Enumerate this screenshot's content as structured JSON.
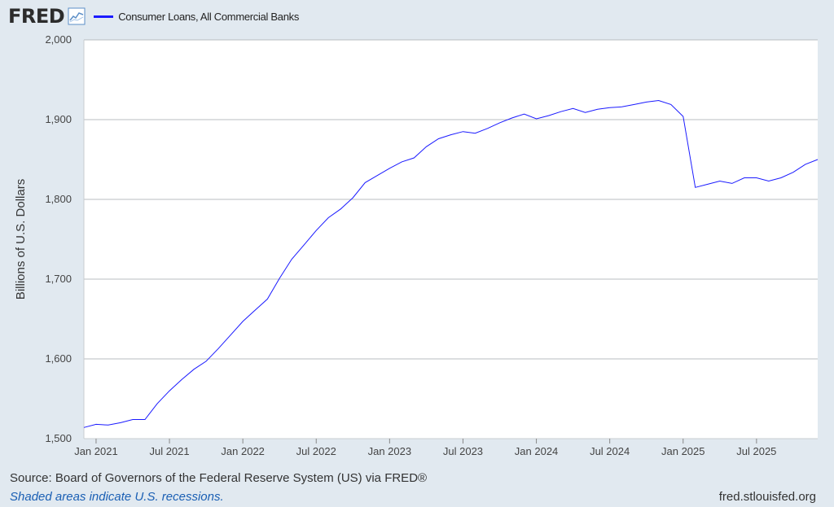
{
  "header": {
    "logo": "FRED",
    "legend_label": "Consumer Loans, All Commercial Banks"
  },
  "colors": {
    "series": "#1a1aff",
    "background": "#e1e9f0",
    "plot": "#ffffff",
    "grid": "#b8bcc0"
  },
  "chart_data": {
    "type": "line",
    "title": "Consumer Loans, All Commercial Banks",
    "ylabel": "Billions of U.S. Dollars",
    "xlabel": "",
    "ylim": [
      1500,
      2000
    ],
    "yticks": [
      1500,
      1600,
      1700,
      1800,
      1900,
      2000
    ],
    "ytick_labels": [
      "1,500",
      "1,600",
      "1,700",
      "1,800",
      "1,900",
      "2,000"
    ],
    "xlim": [
      2020.917,
      2025.917
    ],
    "xticks": [
      2021.0,
      2021.5,
      2022.0,
      2022.5,
      2023.0,
      2023.5,
      2024.0,
      2024.5,
      2025.0,
      2025.5
    ],
    "xtick_labels": [
      "Jan 2021",
      "Jul 2021",
      "Jan 2022",
      "Jul 2022",
      "Jan 2023",
      "Jul 2023",
      "Jan 2024",
      "Jul 2024",
      "Jan 2025",
      "Jul 2025"
    ],
    "series": [
      {
        "name": "Consumer Loans, All Commercial Banks",
        "x": [
          2020.917,
          2021.0,
          2021.083,
          2021.167,
          2021.25,
          2021.333,
          2021.417,
          2021.5,
          2021.583,
          2021.667,
          2021.75,
          2021.833,
          2021.917,
          2022.0,
          2022.083,
          2022.167,
          2022.25,
          2022.333,
          2022.417,
          2022.5,
          2022.583,
          2022.667,
          2022.75,
          2022.833,
          2022.917,
          2023.0,
          2023.083,
          2023.167,
          2023.25,
          2023.333,
          2023.417,
          2023.5,
          2023.583,
          2023.667,
          2023.75,
          2023.833,
          2023.917,
          2024.0,
          2024.083,
          2024.167,
          2024.25,
          2024.333,
          2024.417,
          2024.5,
          2024.583,
          2024.667,
          2024.75,
          2024.833,
          2024.917,
          2025.0,
          2025.083,
          2025.167,
          2025.25,
          2025.333,
          2025.417,
          2025.5,
          2025.583,
          2025.667,
          2025.75,
          2025.833,
          2025.917
        ],
        "values": [
          1514,
          1518,
          1517,
          1520,
          1524,
          1524,
          1544,
          1560,
          1574,
          1587,
          1597,
          1613,
          1630,
          1647,
          1661,
          1675,
          1701,
          1725,
          1743,
          1761,
          1777,
          1788,
          1802,
          1821,
          1830,
          1839,
          1847,
          1852,
          1866,
          1876,
          1881,
          1885,
          1883,
          1889,
          1896,
          1902,
          1907,
          1901,
          1905,
          1910,
          1914,
          1909,
          1913,
          1915,
          1916,
          1919,
          1922,
          1924,
          1919,
          1904,
          1815,
          1819,
          1823,
          1820,
          1827,
          1827,
          1823,
          1827,
          1834,
          1844,
          1850
        ]
      }
    ]
  },
  "footer": {
    "source": "Source: Board of Governors of the Federal Reserve System (US) via FRED®",
    "note": "Shaded areas indicate U.S. recessions.",
    "site": "fred.stlouisfed.org"
  }
}
